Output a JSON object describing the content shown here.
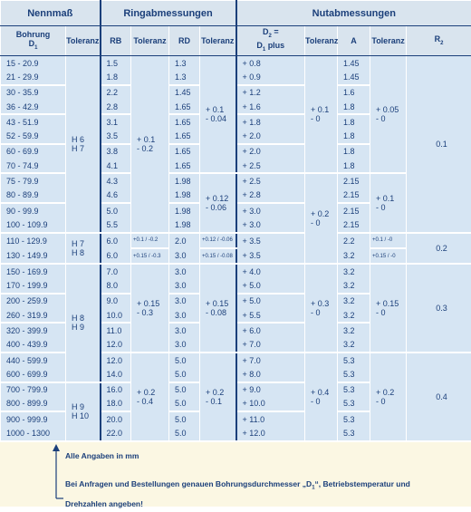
{
  "header": {
    "groups": [
      "Nennmaß",
      "Ringabmessungen",
      "Nutabmessungen"
    ],
    "columns": [
      {
        "lines": [
          [
            "Bohrung"
          ],
          [
            "D",
            {
              "sub": "1"
            }
          ]
        ]
      },
      {
        "lines": [
          [
            "Toleranz"
          ]
        ]
      },
      {
        "lines": [
          [
            "RB"
          ]
        ]
      },
      {
        "lines": [
          [
            "Toleranz"
          ]
        ]
      },
      {
        "lines": [
          [
            "RD"
          ]
        ]
      },
      {
        "lines": [
          [
            "Toleranz"
          ]
        ]
      },
      {
        "lines": [
          [
            "D",
            {
              "sub": "2"
            },
            " ="
          ],
          [
            "D",
            {
              "sub": "1"
            },
            " plus"
          ]
        ]
      },
      {
        "lines": [
          [
            "Toleranz"
          ]
        ]
      },
      {
        "lines": [
          [
            "A"
          ]
        ]
      },
      {
        "lines": [
          [
            "Toleranz"
          ]
        ]
      },
      {
        "lines": [
          [
            "R",
            {
              "sub": "2"
            }
          ]
        ]
      }
    ]
  },
  "rows": [
    {
      "bore": "15 - 20.9",
      "rb": "1.5",
      "rd": "1.3",
      "d2": "+ 0.8",
      "a": "1.45"
    },
    {
      "bore": "21 - 29.9",
      "rb": "1.8",
      "rd": "1.3",
      "d2": "+ 0.9",
      "a": "1.45"
    },
    {
      "bore": "30 - 35.9",
      "rb": "2.2",
      "rd": "1.45",
      "d2": "+ 1.2",
      "a": "1.6"
    },
    {
      "bore": "36 - 42.9",
      "rb": "2.8",
      "rd": "1.65",
      "d2": "+ 1.6",
      "a": "1.8"
    },
    {
      "bore": "43 - 51.9",
      "rb": "3.1",
      "rd": "1.65",
      "d2": "+ 1.8",
      "a": "1.8"
    },
    {
      "bore": "52 - 59.9",
      "rb": "3.5",
      "rd": "1.65",
      "d2": "+ 2.0",
      "a": "1.8"
    },
    {
      "bore": "60 - 69.9",
      "rb": "3.8",
      "rd": "1.65",
      "d2": "+ 2.0",
      "a": "1.8"
    },
    {
      "bore": "70 - 74.9",
      "rb": "4.1",
      "rd": "1.65",
      "d2": "+ 2.5",
      "a": "1.8"
    },
    {
      "bore": "75 - 79.9",
      "rb": "4.3",
      "rd": "1.98",
      "d2": "+ 2.5",
      "a": "2.15"
    },
    {
      "bore": "80 - 89.9",
      "rb": "4.6",
      "rd": "1.98",
      "d2": "+ 2.8",
      "a": "2.15"
    },
    {
      "bore": "90 - 99.9",
      "rb": "5.0",
      "rd": "1.98",
      "d2": "+ 3.0",
      "a": "2.15"
    },
    {
      "bore": "100 - 109.9",
      "rb": "5.5",
      "rd": "1.98",
      "d2": "+ 3.0",
      "a": "2.15"
    },
    {
      "bore": "110 - 129.9",
      "rb": "6.0",
      "rd": "2.0",
      "d2": "+ 3.5",
      "a": "2.2"
    },
    {
      "bore": "130 - 149.9",
      "rb": "6.0",
      "rd": "3.0",
      "d2": "+ 3.5",
      "a": "3.2"
    },
    {
      "bore": "150 - 169.9",
      "rb": "7.0",
      "rd": "3.0",
      "d2": "+ 4.0",
      "a": "3.2"
    },
    {
      "bore": "170 - 199.9",
      "rb": "8.0",
      "rd": "3.0",
      "d2": "+ 5.0",
      "a": "3.2"
    },
    {
      "bore": "200 - 259.9",
      "rb": "9.0",
      "rd": "3.0",
      "d2": "+ 5.0",
      "a": "3.2"
    },
    {
      "bore": "260 - 319.9",
      "rb": "10.0",
      "rd": "3.0",
      "d2": "+ 5.5",
      "a": "3.2"
    },
    {
      "bore": "320 - 399.9",
      "rb": "11.0",
      "rd": "3.0",
      "d2": "+ 6.0",
      "a": "3.2"
    },
    {
      "bore": "400 - 439.9",
      "rb": "12.0",
      "rd": "3.0",
      "d2": "+ 7.0",
      "a": "3.2"
    },
    {
      "bore": "440 - 599.9",
      "rb": "12.0",
      "rd": "5.0",
      "d2": "+ 7.0",
      "a": "5.3"
    },
    {
      "bore": "600 - 699.9",
      "rb": "14.0",
      "rd": "5.0",
      "d2": "+ 8.0",
      "a": "5.3"
    },
    {
      "bore": "700 - 799.9",
      "rb": "16.0",
      "rd": "5.0",
      "d2": "+ 9.0",
      "a": "5.3"
    },
    {
      "bore": "800 - 899.9",
      "rb": "18.0",
      "rd": "5.0",
      "d2": "+ 10.0",
      "a": "5.3"
    },
    {
      "bore": "900 - 999.9",
      "rb": "20.0",
      "rd": "5.0",
      "d2": "+ 11.0",
      "a": "5.3"
    },
    {
      "bore": "1000 - 1300",
      "rb": "22.0",
      "rd": "5.0",
      "d2": "+ 12.0",
      "a": "5.3"
    }
  ],
  "merged": {
    "bore_tol": [
      {
        "span": 12,
        "lines": [
          "H 6",
          "H 7"
        ]
      },
      {
        "span": 2,
        "lines": [
          "H 7",
          "H 8"
        ]
      },
      {
        "span": 8,
        "lines": [
          "H 8",
          "H 9"
        ]
      },
      {
        "span": 4,
        "lines": [
          "H 9",
          "H 10"
        ]
      }
    ],
    "rb_tol": [
      {
        "span": 12,
        "lines": [
          "+ 0.1",
          "- 0.2"
        ]
      },
      {
        "span": 1,
        "lines": [
          "+0.1 / -0.2"
        ]
      },
      {
        "span": 1,
        "lines": [
          "+0.15 / -0.3"
        ]
      },
      {
        "span": 6,
        "lines": [
          "+ 0.15",
          "- 0.3"
        ]
      },
      {
        "span": 6,
        "lines": [
          "+ 0.2",
          "- 0.4"
        ]
      }
    ],
    "rd_tol": [
      {
        "span": 8,
        "lines": [
          "+ 0.1",
          "- 0.04"
        ]
      },
      {
        "span": 4,
        "lines": [
          "+ 0.12",
          "- 0.06"
        ]
      },
      {
        "span": 1,
        "lines": [
          "+0.12 / -0.06"
        ]
      },
      {
        "span": 1,
        "lines": [
          "+0.15 / -0.08"
        ]
      },
      {
        "span": 6,
        "lines": [
          "+ 0.15",
          "- 0.08"
        ]
      },
      {
        "span": 6,
        "lines": [
          "+ 0.2",
          "- 0.1"
        ]
      }
    ],
    "d2_tol": [
      {
        "span": 8,
        "lines": [
          "+ 0.1",
          "- 0"
        ]
      },
      {
        "span": 6,
        "lines": [
          "+ 0.2",
          "- 0"
        ]
      },
      {
        "span": 6,
        "lines": [
          "+ 0.3",
          "- 0"
        ]
      },
      {
        "span": 6,
        "lines": [
          "+ 0.4",
          "- 0"
        ]
      }
    ],
    "a_tol": [
      {
        "span": 8,
        "lines": [
          "+ 0.05",
          "- 0"
        ]
      },
      {
        "span": 4,
        "lines": [
          "+ 0.1",
          "- 0"
        ]
      },
      {
        "span": 1,
        "lines": [
          "+0.1 / -0"
        ]
      },
      {
        "span": 1,
        "lines": [
          "+0.15 / -0"
        ]
      },
      {
        "span": 6,
        "lines": [
          "+ 0.15",
          "- 0"
        ]
      },
      {
        "span": 6,
        "lines": [
          "+ 0.2",
          "- 0"
        ]
      }
    ],
    "r2": [
      {
        "span": 12,
        "lines": [
          "0.1"
        ]
      },
      {
        "span": 2,
        "lines": [
          "0.2"
        ]
      },
      {
        "span": 6,
        "lines": [
          "0.3"
        ]
      },
      {
        "span": 6,
        "lines": [
          "0.4"
        ]
      }
    ]
  },
  "footer": {
    "unit_note": "Alle Angaben in mm",
    "request_note": [
      "Bei Anfragen und Bestellungen genauen Bohrungsdurchmesser „D",
      {
        "sub": "1"
      },
      "“, Betriebstemperatur und",
      {
        "br": "Drehzahlen angeben!"
      }
    ]
  }
}
